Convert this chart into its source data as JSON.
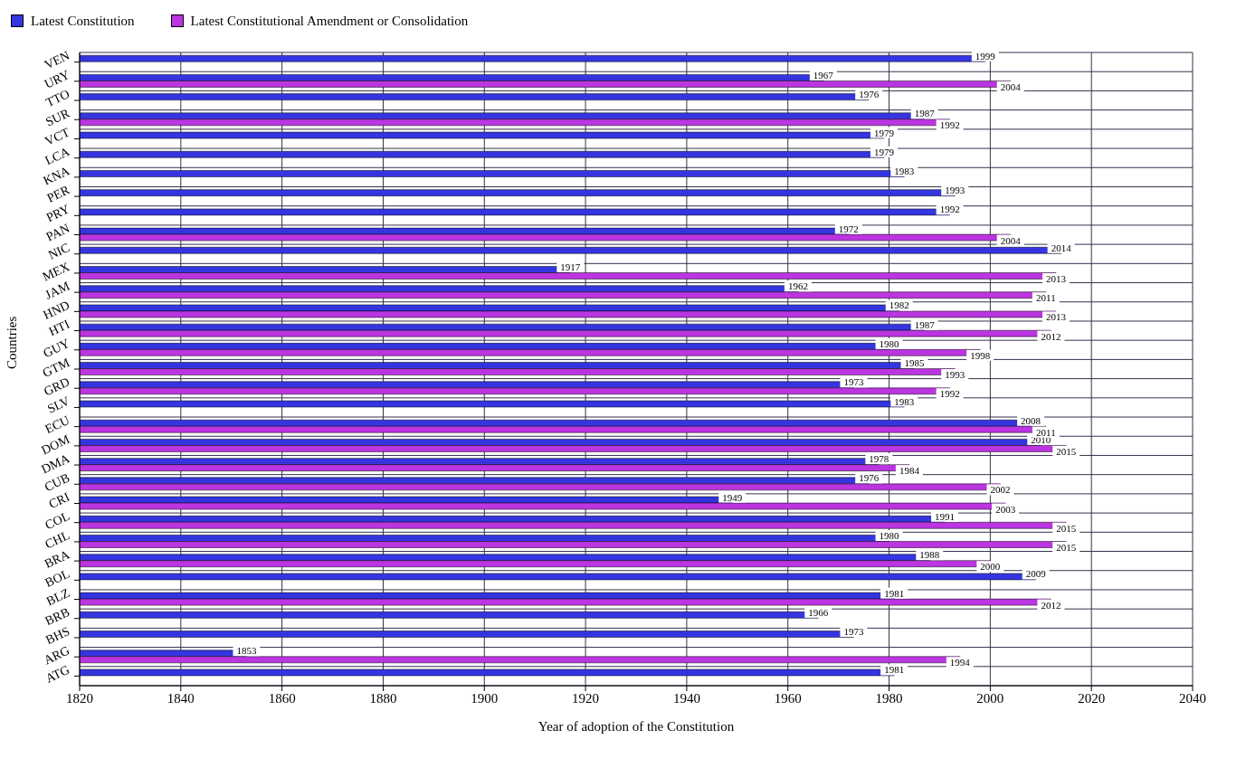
{
  "chart_data": {
    "type": "bar",
    "orientation": "horizontal",
    "xlabel": "Year of adoption of the Constitution",
    "ylabel": "Countries",
    "categories": [
      "VEN",
      "URY",
      "TTO",
      "SUR",
      "VCT",
      "LCA",
      "KNA",
      "PER",
      "PRY",
      "PAN",
      "NIC",
      "MEX",
      "JAM",
      "HND",
      "HTI",
      "GUY",
      "GTM",
      "GRD",
      "SLV",
      "ECU",
      "DOM",
      "DMA",
      "CUB",
      "CRI",
      "COL",
      "CHL",
      "BRA",
      "BOL",
      "BLZ",
      "BRB",
      "BHS",
      "ARG",
      "ATG"
    ],
    "series": [
      {
        "name": "Latest Constitution",
        "color": "#3535e0",
        "values": [
          1999,
          1967,
          1976,
          1987,
          1979,
          1979,
          1983,
          1993,
          1992,
          1972,
          2014,
          1917,
          1962,
          1982,
          1987,
          1980,
          1985,
          1973,
          1983,
          2008,
          2010,
          1978,
          1976,
          1949,
          1991,
          1980,
          1988,
          2009,
          1981,
          1966,
          1973,
          1853,
          1981
        ]
      },
      {
        "name": "Latest Constitutional Amendment or Consolidation",
        "color": "#bb35e0",
        "values": [
          null,
          2004,
          null,
          1992,
          null,
          null,
          null,
          null,
          null,
          2004,
          null,
          2013,
          2011,
          2013,
          2012,
          1998,
          1993,
          1992,
          null,
          2011,
          2015,
          1984,
          2002,
          2003,
          2015,
          2015,
          2000,
          null,
          2012,
          null,
          null,
          1994,
          null
        ]
      }
    ],
    "xlim": [
      1820,
      2040
    ],
    "xticks": [
      1820,
      1840,
      1860,
      1880,
      1900,
      1920,
      1940,
      1960,
      1980,
      2000,
      2020,
      2040
    ],
    "grid": true,
    "legend": "top left",
    "data_labels": true
  }
}
